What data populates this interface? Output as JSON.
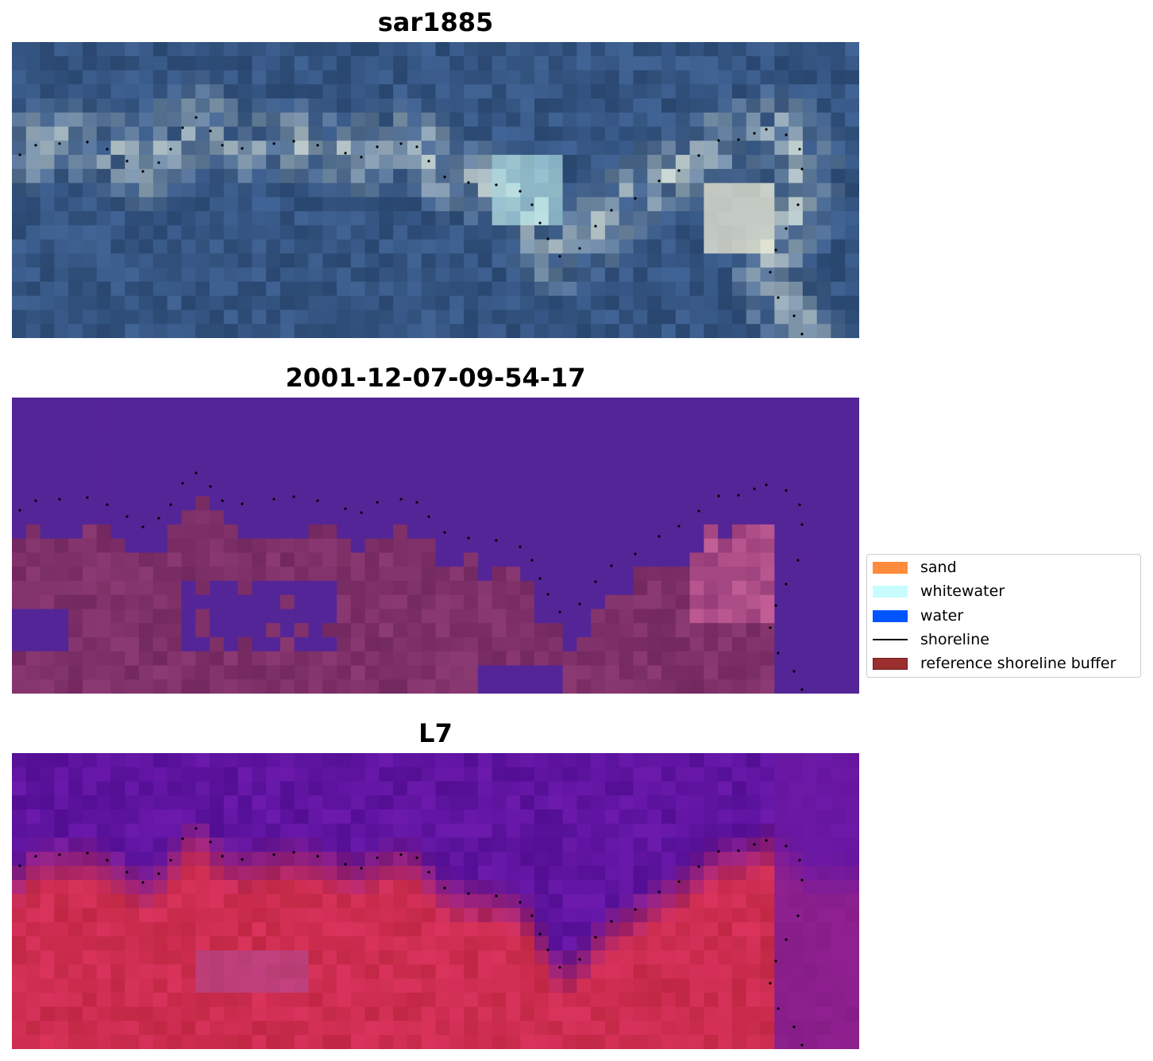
{
  "panels": [
    {
      "title": "sar1885",
      "layer": "rgb composite"
    },
    {
      "title": "2001-12-07-09-54-17",
      "layer": "classification"
    },
    {
      "title": "L7",
      "layer": "index"
    }
  ],
  "legend": {
    "items": [
      {
        "label": "sand",
        "color": "#ff8c3c",
        "kind": "patch"
      },
      {
        "label": "whitewater",
        "color": "#c8fcfc",
        "kind": "patch"
      },
      {
        "label": "water",
        "color": "#0055ff",
        "kind": "patch"
      },
      {
        "label": "shoreline",
        "color": "#000000",
        "kind": "line"
      },
      {
        "label": "reference shoreline buffer",
        "color": "#9b2f2f",
        "kind": "patch"
      }
    ]
  },
  "colors": {
    "background": "#ffffff",
    "rgb_base": "#2d4e80",
    "class_water": "#542597",
    "class_land": "#7f2d6f",
    "index_low": "#5b12a0",
    "index_high": "#c8103c",
    "shoreline": "#000000"
  }
}
